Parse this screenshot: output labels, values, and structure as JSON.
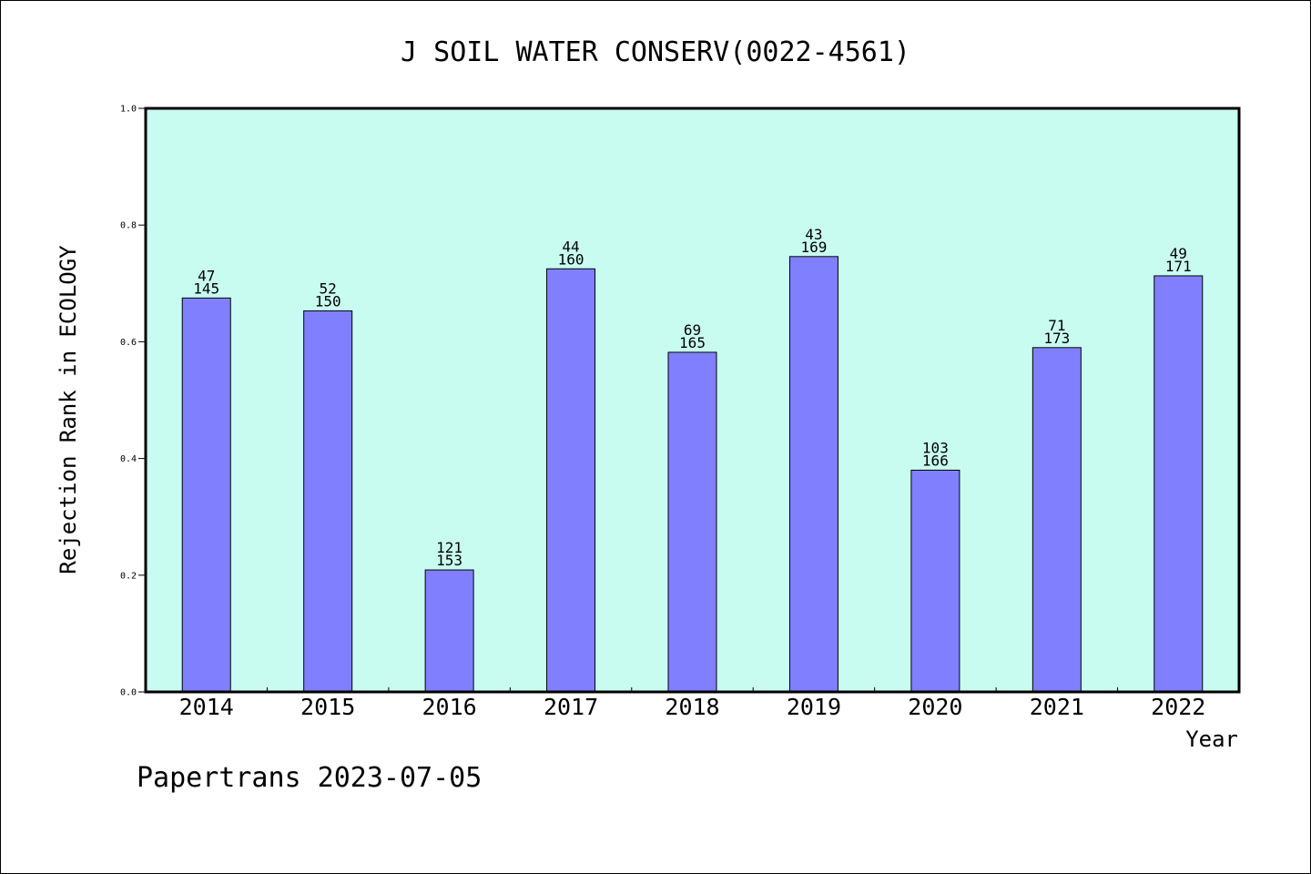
{
  "chart_data": {
    "type": "bar",
    "title": "J SOIL WATER CONSERV(0022-4561)",
    "xlabel": "Year",
    "ylabel": "Rejection Rank in ECOLOGY",
    "ylim": [
      0,
      1.0
    ],
    "yticks": [
      "0.0",
      "0.2",
      "0.4",
      "0.6",
      "0.8",
      "1.0"
    ],
    "categories": [
      "2014",
      "2015",
      "2016",
      "2017",
      "2018",
      "2019",
      "2020",
      "2021",
      "2022"
    ],
    "values": [
      0.675,
      0.653,
      0.209,
      0.725,
      0.582,
      0.746,
      0.38,
      0.59,
      0.713
    ],
    "bar_labels": [
      [
        "47",
        "145"
      ],
      [
        "52",
        "150"
      ],
      [
        "121",
        "153"
      ],
      [
        "44",
        "160"
      ],
      [
        "69",
        "165"
      ],
      [
        "43",
        "169"
      ],
      [
        "103",
        "166"
      ],
      [
        "71",
        "173"
      ],
      [
        "49",
        "171"
      ]
    ],
    "colors": {
      "plot_background": "#c8fcf0",
      "bar_fill": "#8080ff",
      "bar_stroke": "#000000"
    },
    "grid": false,
    "legend": "none"
  },
  "footer": {
    "text": "Papertrans 2023-07-05"
  }
}
